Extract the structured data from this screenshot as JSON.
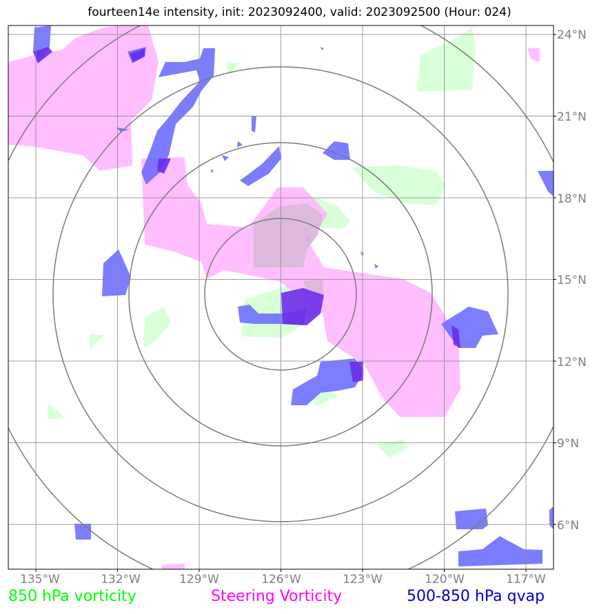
{
  "title": "fourteen14e intensity, init: 2023092400, valid: 2023092500 (Hour: 024)",
  "lon_ticks": [
    "135°W",
    "132°W",
    "129°W",
    "126°W",
    "123°W",
    "120°W",
    "117°W"
  ],
  "lat_ticks": [
    "24°N",
    "21°N",
    "18°N",
    "15°N",
    "12°N",
    "9°N",
    "6°N"
  ],
  "legend": {
    "green": "850 hPa vorticity",
    "magenta": "Steering Vorticity",
    "blue": "500-850 hPa qvap"
  },
  "colors": {
    "green": "#ccffcc",
    "magenta": "#ffb3ff",
    "blue": "#6666ff",
    "purple": "#6a2ee8",
    "grid": "#8c8c8c",
    "rings": "#7a7a7a"
  },
  "map": {
    "center": {
      "lon": -126,
      "lat": 14.5
    },
    "extent": {
      "lon": [
        -136.0,
        -116.1
      ],
      "lat": [
        4.6,
        24.6
      ]
    },
    "ring_radii_deg": [
      2.8,
      5.6,
      8.4,
      11.2
    ]
  }
}
